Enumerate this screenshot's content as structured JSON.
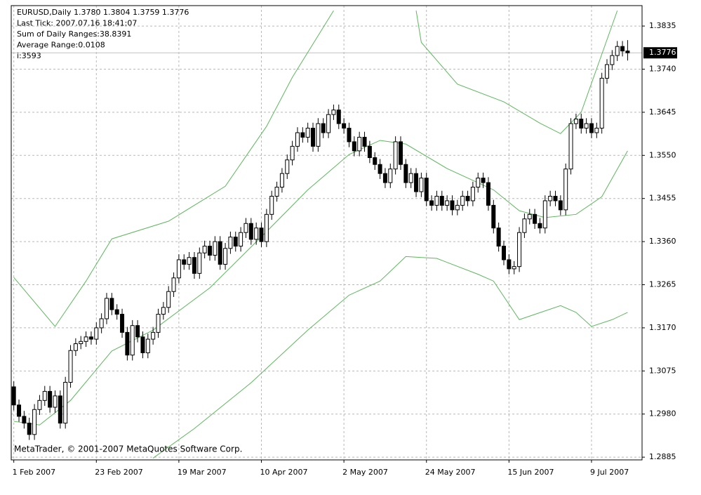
{
  "chart_data": {
    "type": "candlestick",
    "header_lines": [
      "EURUSD,Daily  1.3780 1.3804 1.3759 1.3776",
      "Last Tick: 2007.07.16 18:41:07",
      "Sum of Daily Ranges:38.8391",
      "Average Range:0.0108",
      "i:3593"
    ],
    "footer": "MetaTrader, © 2001-2007 MetaQuotes Software Corp.",
    "grid": true,
    "up_color": "#ffffff",
    "down_color": "#000000",
    "xlim": [
      -0.5,
      121.8
    ],
    "ylim": [
      1.2879,
      1.388
    ],
    "yticks": [
      1.2885,
      {
        "value": 1.298,
        "label": "1.2980"
      },
      1.3075,
      {
        "value": 1.317,
        "label": "1.3170"
      },
      1.3265,
      {
        "value": 1.336,
        "label": "1.3360"
      },
      1.3455,
      {
        "value": 1.355,
        "label": "1.3550"
      },
      1.3645,
      {
        "value": 1.374,
        "label": "1.3740"
      },
      1.3835
    ],
    "xticks": [
      {
        "value": 0,
        "label": "1 Feb 2007"
      },
      {
        "value": 16,
        "label": "23 Feb 2007"
      },
      {
        "value": 32,
        "label": "19 Mar 2007"
      },
      {
        "value": 48,
        "label": "10 Apr 2007"
      },
      {
        "value": 64,
        "label": "2 May 2007"
      },
      {
        "value": 80,
        "label": "24 May 2007"
      },
      {
        "value": 96,
        "label": "15 Jun 2007"
      },
      {
        "value": 112,
        "label": "9 Jul 2007"
      }
    ],
    "current_price": 1.3776,
    "open": [
      1.304,
      1.3,
      1.2975,
      1.296,
      1.2935,
      1.299,
      1.301,
      1.303,
      1.2995,
      1.302,
      1.296,
      1.305,
      1.312,
      1.3135,
      1.314,
      1.315,
      1.3145,
      1.317,
      1.319,
      1.3235,
      1.321,
      1.32,
      1.316,
      1.311,
      1.3175,
      1.315,
      1.3115,
      1.3145,
      1.316,
      1.32,
      1.3215,
      1.325,
      1.328,
      1.332,
      1.331,
      1.3325,
      1.329,
      1.3335,
      1.335,
      1.333,
      1.336,
      1.331,
      1.3345,
      1.337,
      1.335,
      1.338,
      1.34,
      1.3365,
      1.339,
      1.336,
      1.342,
      1.346,
      1.348,
      1.351,
      1.354,
      1.357,
      1.36,
      1.359,
      1.361,
      1.357,
      1.362,
      1.36,
      1.364,
      1.365,
      1.362,
      1.361,
      1.358,
      1.356,
      1.359,
      1.357,
      1.3545,
      1.353,
      1.351,
      1.349,
      1.352,
      1.358,
      1.353,
      1.349,
      1.351,
      1.347,
      1.35,
      1.345,
      1.344,
      1.346,
      1.344,
      1.345,
      1.343,
      1.344,
      1.346,
      1.345,
      1.348,
      1.35,
      1.349,
      1.344,
      1.339,
      1.335,
      1.332,
      1.33,
      1.3305,
      1.338,
      1.341,
      1.342,
      1.34,
      1.339,
      1.345,
      1.346,
      1.345,
      1.343,
      1.352,
      1.362,
      1.363,
      1.361,
      1.362,
      1.36,
      1.361,
      1.372,
      1.375,
      1.377,
      1.379,
      1.378
    ],
    "high": [
      1.3052,
      1.3012,
      1.2987,
      1.2972,
      1.3002,
      1.3022,
      1.3042,
      1.3042,
      1.3032,
      1.3032,
      1.3062,
      1.3132,
      1.3147,
      1.3152,
      1.3162,
      1.3162,
      1.3182,
      1.3202,
      1.3247,
      1.3247,
      1.3222,
      1.3212,
      1.3172,
      1.3187,
      1.3187,
      1.3162,
      1.3157,
      1.3172,
      1.3212,
      1.3227,
      1.3262,
      1.3292,
      1.3332,
      1.3332,
      1.3337,
      1.3337,
      1.3347,
      1.3362,
      1.3362,
      1.3372,
      1.3372,
      1.3357,
      1.3382,
      1.3382,
      1.3392,
      1.3412,
      1.3412,
      1.3402,
      1.3402,
      1.3432,
      1.3472,
      1.3492,
      1.3522,
      1.3552,
      1.3582,
      1.3612,
      1.3612,
      1.3622,
      1.3622,
      1.3632,
      1.3632,
      1.3652,
      1.3662,
      1.3662,
      1.3632,
      1.3622,
      1.3592,
      1.3602,
      1.3602,
      1.3582,
      1.3557,
      1.3542,
      1.3522,
      1.3532,
      1.3592,
      1.3592,
      1.3542,
      1.3522,
      1.3522,
      1.3512,
      1.3512,
      1.3462,
      1.3472,
      1.3472,
      1.3462,
      1.3462,
      1.3452,
      1.3472,
      1.3472,
      1.3492,
      1.3512,
      1.3512,
      1.3502,
      1.3452,
      1.3402,
      1.3362,
      1.3332,
      1.3317,
      1.3392,
      1.3422,
      1.3432,
      1.3432,
      1.3412,
      1.3462,
      1.3472,
      1.3472,
      1.3462,
      1.3532,
      1.3632,
      1.3642,
      1.3642,
      1.3632,
      1.3632,
      1.3622,
      1.3732,
      1.3762,
      1.3782,
      1.3802,
      1.3802,
      1.3804
    ],
    "low": [
      1.2988,
      1.2963,
      1.2948,
      1.2923,
      1.2923,
      1.2978,
      1.2998,
      1.2983,
      1.2983,
      1.2948,
      1.2948,
      1.3038,
      1.3108,
      1.3123,
      1.3128,
      1.3133,
      1.3133,
      1.3158,
      1.3178,
      1.3198,
      1.3188,
      1.3148,
      1.3098,
      1.3098,
      1.3138,
      1.3103,
      1.3103,
      1.3133,
      1.3148,
      1.3188,
      1.3203,
      1.3238,
      1.3268,
      1.3298,
      1.3298,
      1.3278,
      1.3278,
      1.3323,
      1.3318,
      1.3318,
      1.3298,
      1.3298,
      1.3333,
      1.3338,
      1.3338,
      1.3368,
      1.3353,
      1.3353,
      1.3348,
      1.3348,
      1.3408,
      1.3448,
      1.3468,
      1.3498,
      1.3528,
      1.3558,
      1.3578,
      1.3578,
      1.3558,
      1.3558,
      1.3588,
      1.3588,
      1.3628,
      1.3608,
      1.3598,
      1.3568,
      1.3548,
      1.3548,
      1.3558,
      1.3533,
      1.3518,
      1.3498,
      1.3478,
      1.3478,
      1.3508,
      1.3518,
      1.3478,
      1.3478,
      1.3458,
      1.3458,
      1.3438,
      1.3428,
      1.3428,
      1.3428,
      1.3428,
      1.3418,
      1.3418,
      1.3428,
      1.3438,
      1.3438,
      1.3468,
      1.3478,
      1.3428,
      1.3378,
      1.3338,
      1.3308,
      1.3288,
      1.3288,
      1.3293,
      1.3368,
      1.3398,
      1.3388,
      1.3378,
      1.3378,
      1.3438,
      1.3438,
      1.3418,
      1.3418,
      1.3508,
      1.3608,
      1.3598,
      1.3598,
      1.3588,
      1.3588,
      1.3598,
      1.3708,
      1.3738,
      1.3758,
      1.3768,
      1.3759
    ],
    "close": [
      1.3,
      1.2975,
      1.296,
      1.2935,
      1.299,
      1.301,
      1.303,
      1.2995,
      1.302,
      1.296,
      1.305,
      1.312,
      1.3135,
      1.314,
      1.315,
      1.3145,
      1.317,
      1.319,
      1.3235,
      1.321,
      1.32,
      1.316,
      1.311,
      1.3175,
      1.315,
      1.3115,
      1.3145,
      1.316,
      1.32,
      1.3215,
      1.325,
      1.328,
      1.332,
      1.331,
      1.3325,
      1.329,
      1.3335,
      1.335,
      1.333,
      1.336,
      1.331,
      1.3345,
      1.337,
      1.335,
      1.338,
      1.34,
      1.3365,
      1.339,
      1.336,
      1.342,
      1.346,
      1.348,
      1.351,
      1.354,
      1.357,
      1.36,
      1.359,
      1.361,
      1.357,
      1.362,
      1.36,
      1.364,
      1.365,
      1.362,
      1.361,
      1.358,
      1.356,
      1.359,
      1.357,
      1.3545,
      1.353,
      1.351,
      1.349,
      1.352,
      1.358,
      1.353,
      1.349,
      1.351,
      1.347,
      1.35,
      1.345,
      1.344,
      1.346,
      1.344,
      1.345,
      1.343,
      1.344,
      1.346,
      1.345,
      1.348,
      1.35,
      1.349,
      1.344,
      1.339,
      1.335,
      1.332,
      1.33,
      1.3305,
      1.338,
      1.341,
      1.342,
      1.34,
      1.339,
      1.345,
      1.346,
      1.345,
      1.343,
      1.352,
      1.362,
      1.363,
      1.361,
      1.362,
      1.36,
      1.361,
      1.372,
      1.375,
      1.377,
      1.379,
      1.378,
      1.3776
    ],
    "series": [
      {
        "color": "#5cb85c",
        "x": [
          0,
          8,
          14,
          19,
          30,
          41,
          49,
          54,
          62,
          70,
          78,
          79,
          86,
          95,
          102,
          106,
          110,
          117
        ],
        "values": [
          1.3281,
          1.3173,
          1.3273,
          1.3366,
          1.3405,
          1.3482,
          1.3614,
          1.3722,
          1.3869,
          null,
          1.3869,
          1.3799,
          1.3707,
          1.3668,
          1.3621,
          1.3598,
          1.3645,
          1.3869
        ]
      },
      {
        "color": "#5cb85c",
        "x": [
          0,
          5,
          11,
          19,
          27,
          38,
          49,
          57,
          65,
          71,
          76,
          84,
          93,
          98,
          103,
          109,
          114,
          119
        ],
        "values": [
          1.2964,
          1.2956,
          1.301,
          1.3119,
          1.3165,
          1.3258,
          1.3382,
          1.3474,
          1.3552,
          1.3583,
          1.3575,
          1.3521,
          1.3474,
          1.3428,
          1.3413,
          1.342,
          1.3459,
          1.356
        ]
      },
      {
        "color": "#5cb85c",
        "x": [
          27,
          35,
          46,
          57,
          65,
          71,
          76,
          82,
          90,
          93,
          98,
          106,
          109,
          112,
          116,
          119
        ],
        "values": [
          1.2883,
          1.2948,
          1.3049,
          1.3165,
          1.3242,
          1.3273,
          1.3327,
          1.3323,
          1.3288,
          1.3273,
          1.3188,
          1.3219,
          1.3204,
          1.3173,
          1.3188,
          1.3204
        ]
      }
    ]
  }
}
